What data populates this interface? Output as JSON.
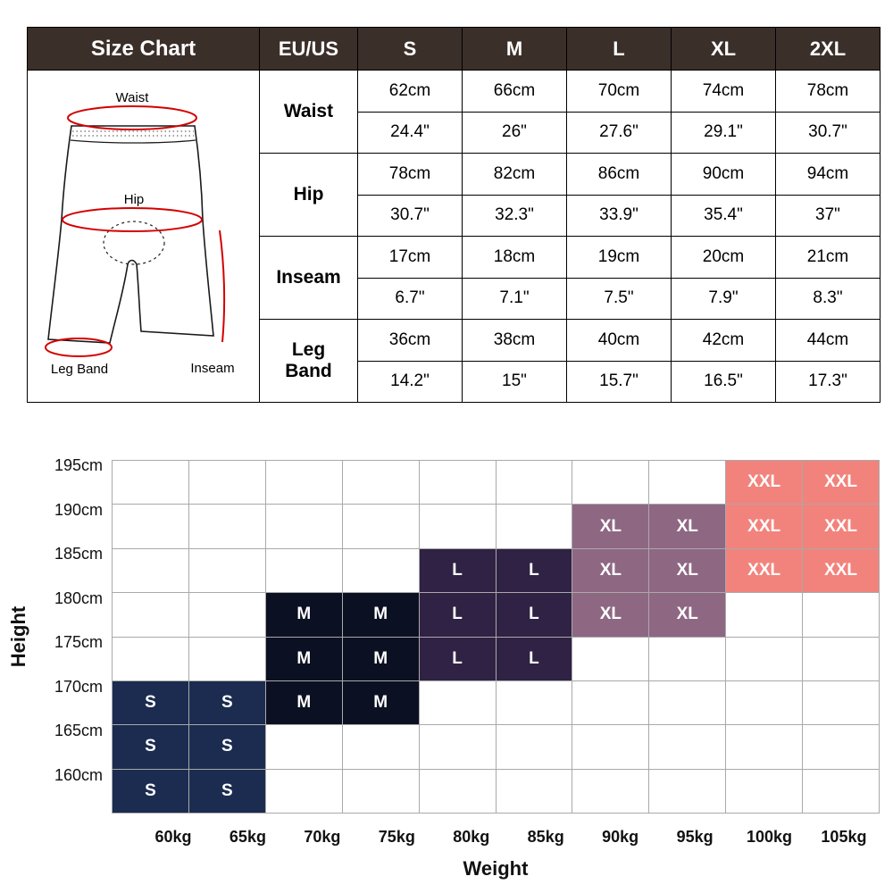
{
  "size_table": {
    "header": {
      "title": "Size Chart",
      "region": "EU/US",
      "sizes": [
        "S",
        "M",
        "L",
        "XL",
        "2XL"
      ]
    },
    "rows": [
      {
        "label": "Waist",
        "cm": [
          "62cm",
          "66cm",
          "70cm",
          "74cm",
          "78cm"
        ],
        "inch": [
          "24.4\"",
          "26\"",
          "27.6\"",
          "29.1\"",
          "30.7\""
        ]
      },
      {
        "label": "Hip",
        "cm": [
          "78cm",
          "82cm",
          "86cm",
          "90cm",
          "94cm"
        ],
        "inch": [
          "30.7\"",
          "32.3\"",
          "33.9\"",
          "35.4\"",
          "37\""
        ]
      },
      {
        "label": "Inseam",
        "cm": [
          "17cm",
          "18cm",
          "19cm",
          "20cm",
          "21cm"
        ],
        "inch": [
          "6.7\"",
          "7.1\"",
          "7.5\"",
          "7.9\"",
          "8.3\""
        ]
      },
      {
        "label": "Leg Band",
        "cm": [
          "36cm",
          "38cm",
          "40cm",
          "42cm",
          "44cm"
        ],
        "inch": [
          "14.2\"",
          "15\"",
          "15.7\"",
          "16.5\"",
          "17.3\""
        ]
      }
    ],
    "diagram_labels": {
      "waist": "Waist",
      "hip": "Hip",
      "leg_band": "Leg Band",
      "inseam": "Inseam"
    },
    "colors": {
      "header_bg": "#3b2f29",
      "header_text": "#ffffff",
      "measure_line": "#d40000"
    }
  },
  "chart_data": {
    "type": "heatmap",
    "title": "",
    "xlabel": "Weight",
    "ylabel": "Height",
    "x_ticks": [
      "60kg",
      "65kg",
      "70kg",
      "75kg",
      "80kg",
      "85kg",
      "90kg",
      "95kg",
      "100kg",
      "105kg"
    ],
    "y_ticks": [
      "195cm",
      "190cm",
      "185cm",
      "180cm",
      "175cm",
      "170cm",
      "165cm",
      "160cm"
    ],
    "grid": {
      "cols": 10,
      "rows": 8
    },
    "legend_position": "none",
    "cells": [
      {
        "row": 0,
        "col": 8,
        "size": "XXL"
      },
      {
        "row": 0,
        "col": 9,
        "size": "XXL"
      },
      {
        "row": 1,
        "col": 6,
        "size": "XL"
      },
      {
        "row": 1,
        "col": 7,
        "size": "XL"
      },
      {
        "row": 1,
        "col": 8,
        "size": "XXL"
      },
      {
        "row": 1,
        "col": 9,
        "size": "XXL"
      },
      {
        "row": 2,
        "col": 4,
        "size": "L"
      },
      {
        "row": 2,
        "col": 5,
        "size": "L"
      },
      {
        "row": 2,
        "col": 6,
        "size": "XL"
      },
      {
        "row": 2,
        "col": 7,
        "size": "XL"
      },
      {
        "row": 2,
        "col": 8,
        "size": "XXL"
      },
      {
        "row": 2,
        "col": 9,
        "size": "XXL"
      },
      {
        "row": 3,
        "col": 2,
        "size": "M"
      },
      {
        "row": 3,
        "col": 3,
        "size": "M"
      },
      {
        "row": 3,
        "col": 4,
        "size": "L"
      },
      {
        "row": 3,
        "col": 5,
        "size": "L"
      },
      {
        "row": 3,
        "col": 6,
        "size": "XL"
      },
      {
        "row": 3,
        "col": 7,
        "size": "XL"
      },
      {
        "row": 4,
        "col": 2,
        "size": "M"
      },
      {
        "row": 4,
        "col": 3,
        "size": "M"
      },
      {
        "row": 4,
        "col": 4,
        "size": "L"
      },
      {
        "row": 4,
        "col": 5,
        "size": "L"
      },
      {
        "row": 5,
        "col": 0,
        "size": "S"
      },
      {
        "row": 5,
        "col": 1,
        "size": "S"
      },
      {
        "row": 5,
        "col": 2,
        "size": "M"
      },
      {
        "row": 5,
        "col": 3,
        "size": "M"
      },
      {
        "row": 6,
        "col": 0,
        "size": "S"
      },
      {
        "row": 6,
        "col": 1,
        "size": "S"
      },
      {
        "row": 7,
        "col": 0,
        "size": "S"
      },
      {
        "row": 7,
        "col": 1,
        "size": "S"
      }
    ],
    "size_colors": {
      "S": "#1b2c50",
      "M": "#0c1023",
      "L": "#2f2244",
      "XL": "#8e6783",
      "XXL": "#f2837c"
    },
    "cell_text_color": "#ffffff",
    "grid_line_color": "#a9a9a9"
  }
}
